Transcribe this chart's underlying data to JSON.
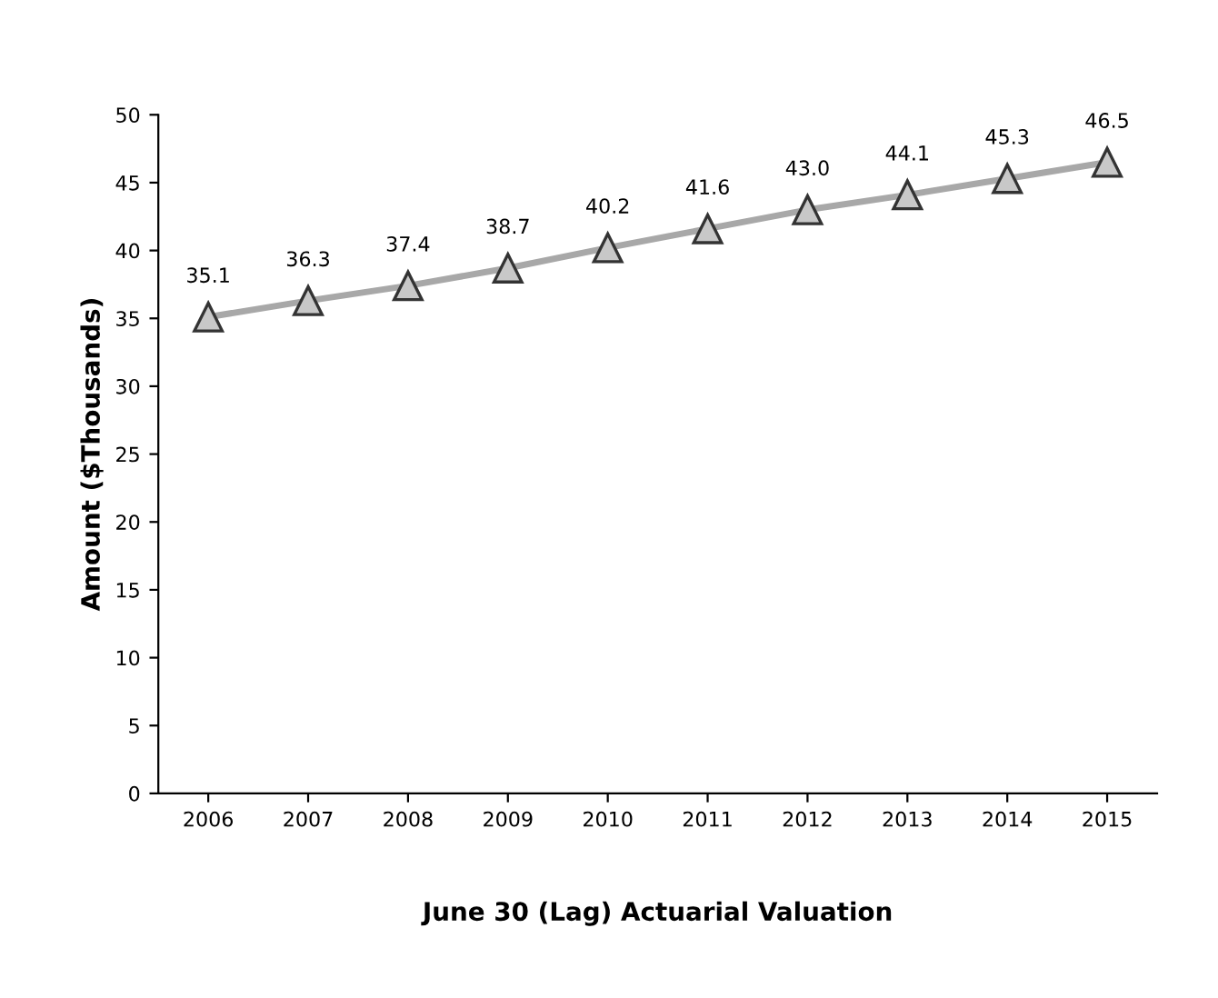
{
  "chart_data": {
    "type": "line",
    "xlabel": "June 30 (Lag) Actuarial Valuation",
    "ylabel": "Amount ($Thousands)",
    "categories": [
      "2006",
      "2007",
      "2008",
      "2009",
      "2010",
      "2011",
      "2012",
      "2013",
      "2014",
      "2015"
    ],
    "series": [
      {
        "color": "#a8a8a8",
        "values": [
          35.1,
          36.3,
          37.4,
          38.7,
          40.2,
          41.6,
          43.0,
          44.1,
          45.3,
          46.5
        ]
      }
    ],
    "ylim": [
      0,
      50
    ],
    "yticks": [
      0,
      5,
      10,
      15,
      20,
      25,
      30,
      35,
      40,
      45,
      50
    ],
    "value_labels": [
      "35.1",
      "36.3",
      "37.4",
      "38.7",
      "40.2",
      "41.6",
      "43.0",
      "44.1",
      "45.3",
      "46.5"
    ],
    "marker": "triangle",
    "line_style": "solid",
    "grid": false,
    "legend": false
  }
}
